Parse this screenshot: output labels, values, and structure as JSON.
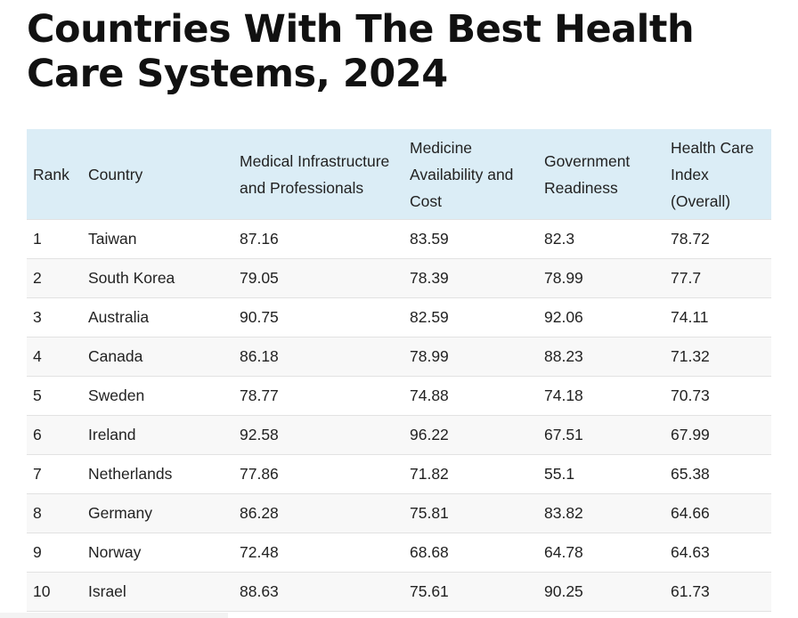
{
  "title": "Countries With The Best Health Care Systems, 2024",
  "table": {
    "headers": [
      "Rank",
      "Country",
      "Medical Infrastructure and Professionals",
      "Medicine Availability and Cost",
      "Government Readiness",
      "Health Care Index (Overall)"
    ],
    "rows": [
      [
        "1",
        "Taiwan",
        "87.16",
        "83.59",
        "82.3",
        "78.72"
      ],
      [
        "2",
        "South Korea",
        "79.05",
        "78.39",
        "78.99",
        "77.7"
      ],
      [
        "3",
        "Australia",
        "90.75",
        "82.59",
        "92.06",
        "74.11"
      ],
      [
        "4",
        "Canada",
        "86.18",
        "78.99",
        "88.23",
        "71.32"
      ],
      [
        "5",
        "Sweden",
        "78.77",
        "74.88",
        "74.18",
        "70.73"
      ],
      [
        "6",
        "Ireland",
        "92.58",
        "96.22",
        "67.51",
        "67.99"
      ],
      [
        "7",
        "Netherlands",
        "77.86",
        "71.82",
        "55.1",
        "65.38"
      ],
      [
        "8",
        "Germany",
        "86.28",
        "75.81",
        "83.82",
        "64.66"
      ],
      [
        "9",
        "Norway",
        "72.48",
        "68.68",
        "64.78",
        "64.63"
      ],
      [
        "10",
        "Israel",
        "88.63",
        "75.61",
        "90.25",
        "61.73"
      ]
    ]
  }
}
